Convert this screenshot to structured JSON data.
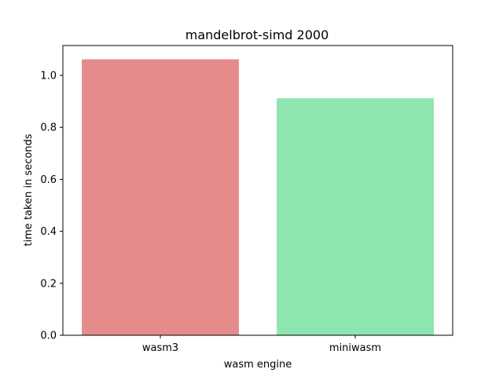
{
  "chart_data": {
    "type": "bar",
    "title": "mandelbrot-simd 2000",
    "xlabel": "wasm engine",
    "ylabel": "time taken in seconds",
    "categories": [
      "wasm3",
      "miniwasm"
    ],
    "values": [
      1.062,
      0.912
    ],
    "colors": [
      "#e58b8b",
      "#8de5b0"
    ],
    "ylim": [
      0,
      1.115
    ],
    "yticks": [
      0.0,
      0.2,
      0.4,
      0.6,
      0.8,
      1.0
    ],
    "ytick_labels": [
      "0.0",
      "0.2",
      "0.4",
      "0.6",
      "0.8",
      "1.0"
    ],
    "grid": false,
    "legend": "none"
  }
}
